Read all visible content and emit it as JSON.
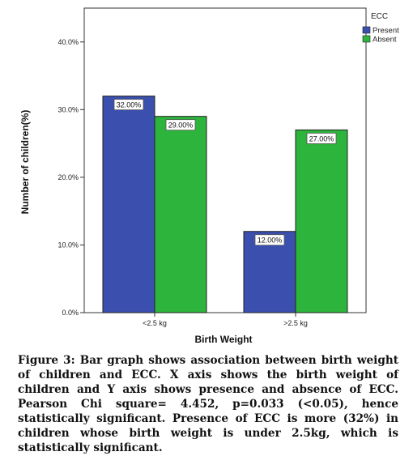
{
  "chart_data": {
    "type": "bar",
    "categories": [
      "<2.5 kg",
      ">2.5 kg"
    ],
    "series": [
      {
        "name": "Present",
        "values": [
          32.0,
          12.0
        ],
        "labels": [
          "32.00%",
          "12.00%"
        ],
        "color": "#3a4fae"
      },
      {
        "name": "Absent",
        "values": [
          29.0,
          27.0
        ],
        "labels": [
          "29.00%",
          "27.00%"
        ],
        "color": "#2db43c"
      }
    ],
    "ylim": [
      0,
      45
    ],
    "yticks": [
      0,
      10,
      20,
      30,
      40
    ],
    "ytick_labels": [
      "0.0%",
      "10.0%",
      "20.0%",
      "30.0%",
      "40.0%"
    ],
    "xlabel": "Birth Weight",
    "ylabel": "Number of children(%)",
    "legend": {
      "title": "ECC",
      "position": "top-right"
    },
    "grid": false
  },
  "caption": "Figure 3: Bar graph shows association between birth weight of children and ECC. X axis shows the birth weight of children and Y axis shows presence and absence of ECC. Pearson Chi square= 4.452, p=0.033 (<0.05), hence statistically significant. Presence of ECC is more (32%) in children whose birth weight is under 2.5kg, which is statistically significant."
}
